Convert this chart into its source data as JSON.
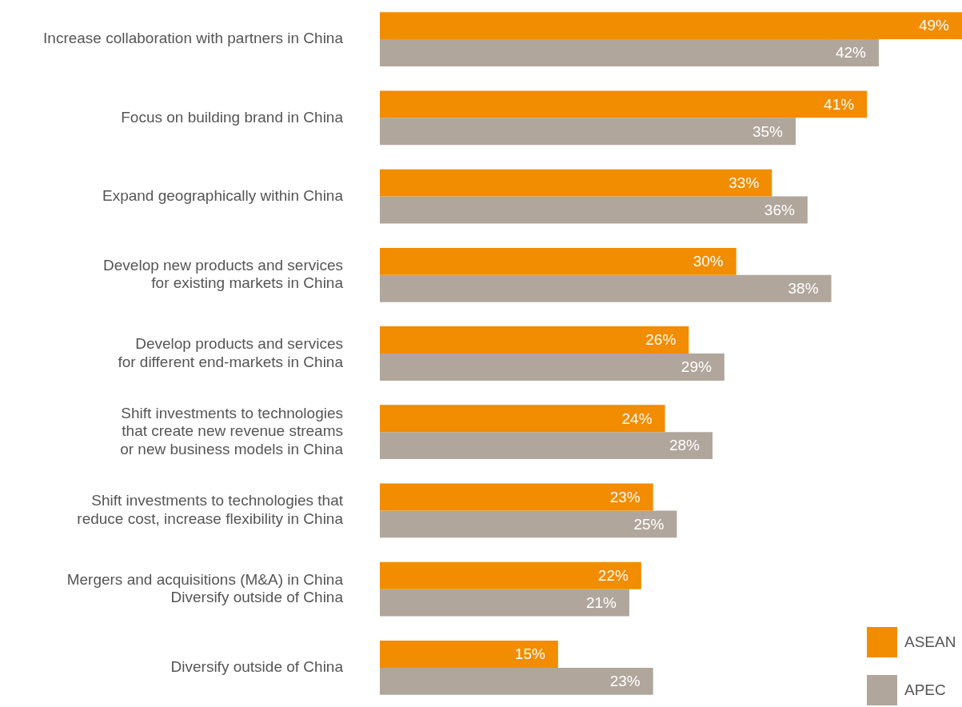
{
  "chart_data": {
    "type": "bar",
    "orientation": "horizontal",
    "categories": [
      "Increase collaboration with partners in China",
      "Focus on building brand in China",
      "Expand geographically within China",
      "Develop new products and services\nfor existing markets in China",
      "Develop products and services\nfor different end-markets in China",
      "Shift investments to technologies\nthat create new revenue streams\nor new business models in China",
      "Shift investments to technologies that\nreduce cost, increase flexibility in China",
      "Mergers and acquisitions (M&A) in China\nDiversify outside of China",
      "Diversify outside of China"
    ],
    "series": [
      {
        "name": "ASEAN",
        "color": "#f28c00",
        "values": [
          49,
          41,
          33,
          30,
          26,
          24,
          23,
          22,
          15
        ],
        "value_labels": [
          "49%",
          "41%",
          "33%",
          "30%",
          "26%",
          "24%",
          "23%",
          "22%",
          "15%"
        ]
      },
      {
        "name": "APEC",
        "color": "#b1a69c",
        "values": [
          42,
          35,
          36,
          38,
          29,
          28,
          25,
          21,
          23
        ],
        "value_labels": [
          "42%",
          "35%",
          "36%",
          "38%",
          "29%",
          "28%",
          "25%",
          "21%",
          "23%"
        ]
      }
    ],
    "legend": "bottom right",
    "tick_labels": "y"
  }
}
